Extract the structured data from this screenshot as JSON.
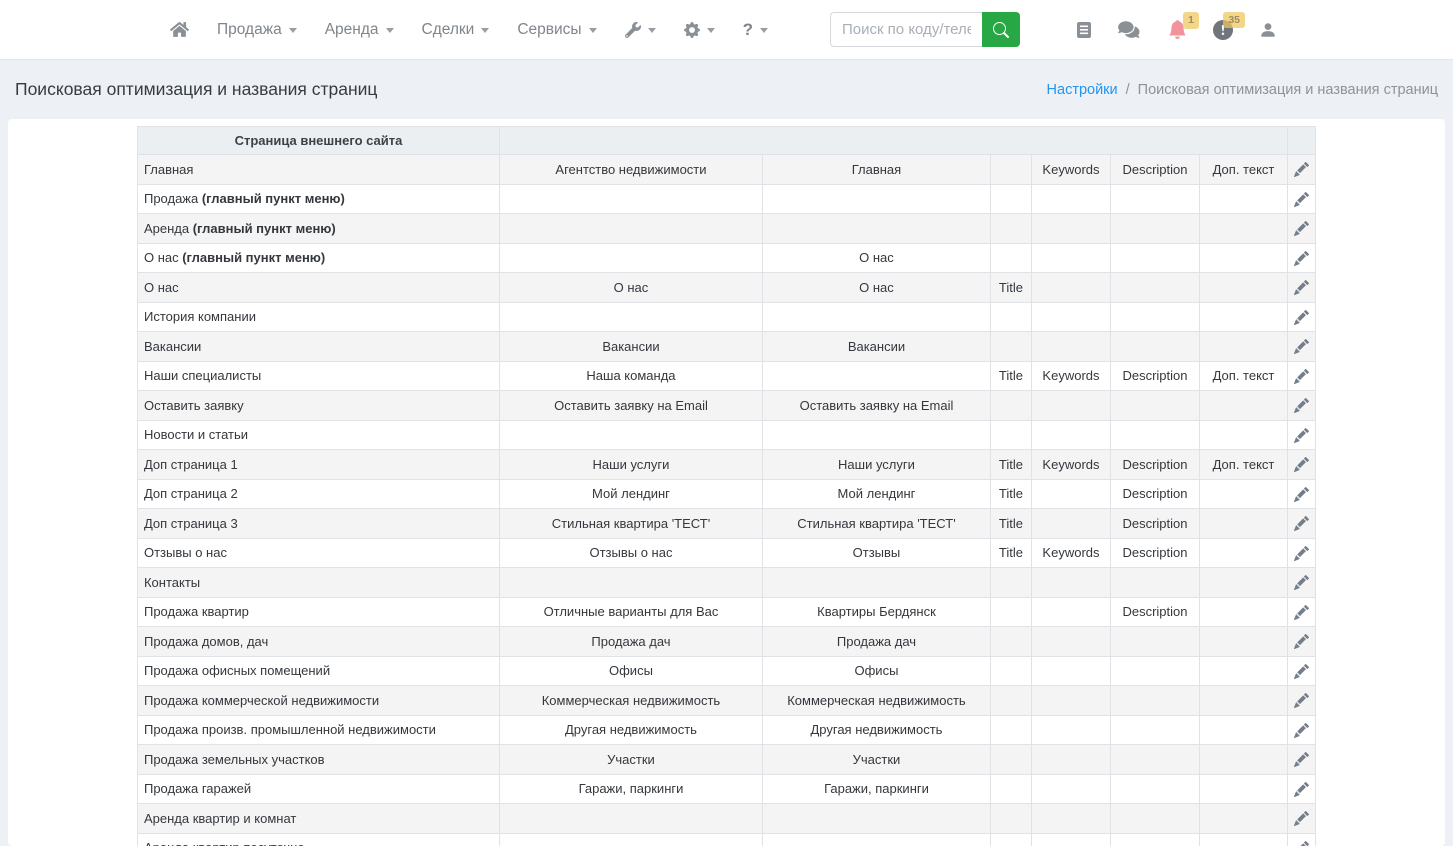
{
  "navbar": {
    "menus": [
      {
        "label": "Продажа"
      },
      {
        "label": "Аренда"
      },
      {
        "label": "Сделки"
      },
      {
        "label": "Сервисы"
      }
    ],
    "help_label": "?",
    "search": {
      "placeholder": "Поиск по коду/телеф"
    },
    "badges": {
      "bell": "1",
      "balance": "35"
    },
    "icons": {
      "left": [
        "home-icon",
        "wrench-icon",
        "gear-icon",
        "question-icon",
        "search-icon"
      ],
      "right": [
        "address-book-icon",
        "chat-icon",
        "bell-icon",
        "exclamation-circle-icon",
        "person-icon"
      ]
    }
  },
  "page": {
    "title": "Поисковая оптимизация и названия страниц",
    "breadcrumb": {
      "link": "Настройки",
      "separator": "/",
      "current": "Поисковая оптимизация и названия страниц"
    }
  },
  "table": {
    "header": "Страница внешнего сайта",
    "flag_labels": [
      "Title",
      "Keywords",
      "Description",
      "Доп. текст"
    ],
    "rows": [
      {
        "page": "Главная",
        "page_bold": "",
        "title": "Агентство недвижимости",
        "menu": "Главная",
        "flags": [
          "",
          "Keywords",
          "Description",
          "Доп. текст"
        ]
      },
      {
        "page": "Продажа",
        "page_bold": "(главный пункт меню)",
        "title": "",
        "menu": "",
        "flags": [
          "",
          "",
          "",
          ""
        ]
      },
      {
        "page": "Аренда",
        "page_bold": "(главный пункт меню)",
        "title": "",
        "menu": "",
        "flags": [
          "",
          "",
          "",
          ""
        ]
      },
      {
        "page": "О нас",
        "page_bold": "(главный пункт меню)",
        "title": "",
        "menu": "О нас",
        "flags": [
          "",
          "",
          "",
          ""
        ]
      },
      {
        "page": "О нас",
        "page_bold": "",
        "title": "О нас",
        "menu": "О нас",
        "flags": [
          "Title",
          "",
          "",
          ""
        ]
      },
      {
        "page": "История компании",
        "page_bold": "",
        "title": "",
        "menu": "",
        "flags": [
          "",
          "",
          "",
          ""
        ]
      },
      {
        "page": "Вакансии",
        "page_bold": "",
        "title": "Вакансии",
        "menu": "Вакансии",
        "flags": [
          "",
          "",
          "",
          ""
        ]
      },
      {
        "page": "Наши специалисты",
        "page_bold": "",
        "title": "Наша команда",
        "menu": "",
        "flags": [
          "Title",
          "Keywords",
          "Description",
          "Доп. текст"
        ]
      },
      {
        "page": "Оставить заявку",
        "page_bold": "",
        "title": "Оставить заявку на Email",
        "menu": "Оставить заявку на Email",
        "flags": [
          "",
          "",
          "",
          ""
        ]
      },
      {
        "page": "Новости и статьи",
        "page_bold": "",
        "title": "",
        "menu": "",
        "flags": [
          "",
          "",
          "",
          ""
        ]
      },
      {
        "page": "Доп страница 1",
        "page_bold": "",
        "title": "Наши услуги",
        "menu": "Наши услуги",
        "flags": [
          "Title",
          "Keywords",
          "Description",
          "Доп. текст"
        ]
      },
      {
        "page": "Доп страница 2",
        "page_bold": "",
        "title": "Мой лендинг",
        "menu": "Мой лендинг",
        "flags": [
          "Title",
          "",
          "Description",
          ""
        ]
      },
      {
        "page": "Доп страница 3",
        "page_bold": "",
        "title": "Стильная квартира 'ТЕСТ'",
        "menu": "Стильная квартира 'ТЕСТ'",
        "flags": [
          "Title",
          "",
          "Description",
          ""
        ]
      },
      {
        "page": "Отзывы о нас",
        "page_bold": "",
        "title": "Отзывы о нас",
        "menu": "Отзывы",
        "flags": [
          "Title",
          "Keywords",
          "Description",
          ""
        ]
      },
      {
        "page": "Контакты",
        "page_bold": "",
        "title": "",
        "menu": "",
        "flags": [
          "",
          "",
          "",
          ""
        ]
      },
      {
        "page": "Продажа квартир",
        "page_bold": "",
        "title": "Отличные варианты для Вас",
        "menu": "Квартиры Бердянск",
        "flags": [
          "",
          "",
          "Description",
          ""
        ]
      },
      {
        "page": "Продажа домов, дач",
        "page_bold": "",
        "title": "Продажа дач",
        "menu": "Продажа дач",
        "flags": [
          "",
          "",
          "",
          ""
        ]
      },
      {
        "page": "Продажа офисных помещений",
        "page_bold": "",
        "title": "Офисы",
        "menu": "Офисы",
        "flags": [
          "",
          "",
          "",
          ""
        ]
      },
      {
        "page": "Продажа коммерческой недвижимости",
        "page_bold": "",
        "title": "Коммерческая недвижимость",
        "menu": "Коммерческая недвижимость",
        "flags": [
          "",
          "",
          "",
          ""
        ]
      },
      {
        "page": "Продажа произв. промышленной недвижимости",
        "page_bold": "",
        "title": "Другая недвижимость",
        "menu": "Другая недвижимость",
        "flags": [
          "",
          "",
          "",
          ""
        ]
      },
      {
        "page": "Продажа земельных участков",
        "page_bold": "",
        "title": "Участки",
        "menu": "Участки",
        "flags": [
          "",
          "",
          "",
          ""
        ]
      },
      {
        "page": "Продажа гаражей",
        "page_bold": "",
        "title": "Гаражи, паркинги",
        "menu": "Гаражи, паркинги",
        "flags": [
          "",
          "",
          "",
          ""
        ]
      },
      {
        "page": "Аренда квартир и комнат",
        "page_bold": "",
        "title": "",
        "menu": "",
        "flags": [
          "",
          "",
          "",
          ""
        ]
      },
      {
        "page": "Аренда квартир посуточно",
        "page_bold": "",
        "title": "",
        "menu": "",
        "flags": [
          "",
          "",
          "",
          ""
        ]
      }
    ]
  },
  "colors": {
    "accent_green": "#28a745",
    "link_blue": "#2196f3",
    "bell_pink": "#f2929a",
    "badge_yellow": "#f0c75e",
    "page_bg": "#edf0f4"
  }
}
